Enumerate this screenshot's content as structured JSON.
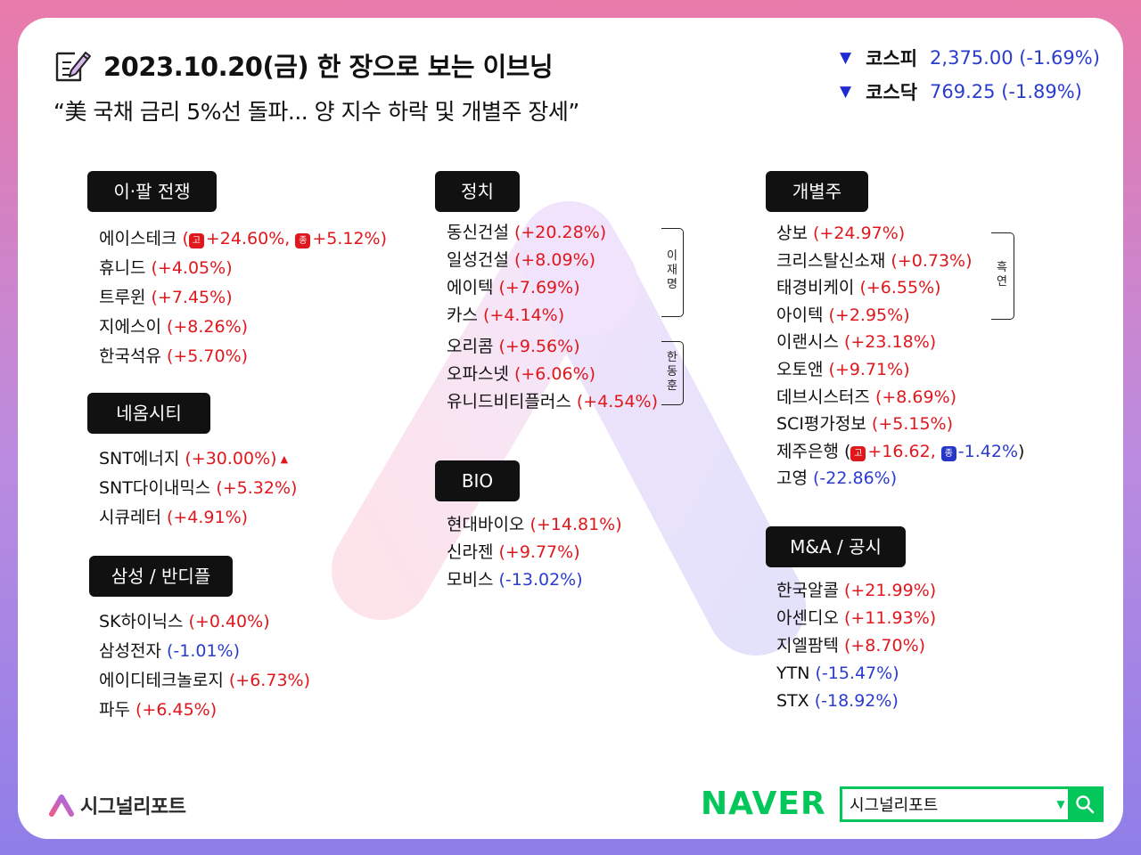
{
  "header": {
    "title": "2023.10.20(금) 한 장으로 보는 이브닝",
    "subtitle": "“美 국채 금리 5%선 돌파... 양 지수 하락 및 개별주 장세”"
  },
  "indices": [
    {
      "name": "코스피",
      "value": "2,375.00 (-1.69%)",
      "direction": "down"
    },
    {
      "name": "코스닥",
      "value": "769.25 (-1.89%)",
      "direction": "down"
    }
  ],
  "icons": {
    "down": "▼",
    "up_small": "▲",
    "dropdown": "▼",
    "memo": "memo-pencil-icon",
    "search": "search-icon"
  },
  "colors": {
    "up": "#e0171c",
    "down": "#2a3ccf",
    "naver": "#03c75a"
  },
  "categories": {
    "war": {
      "label": "이·팔 전쟁",
      "items": [
        {
          "name": "에이스테크",
          "open": "(",
          "b1": "고",
          "c1": "+24.60%,",
          "b2": "종",
          "c2": "+5.12%",
          "close": ")"
        },
        {
          "name": "휴니드",
          "change": "(+4.05%)",
          "dir": "up"
        },
        {
          "name": "트루윈",
          "change": "(+7.45%)",
          "dir": "up"
        },
        {
          "name": "지에스이",
          "change": "(+8.26%)",
          "dir": "up"
        },
        {
          "name": "한국석유",
          "change": "(+5.70%)",
          "dir": "up"
        }
      ]
    },
    "neom": {
      "label": "네옴시티",
      "items": [
        {
          "name": "SNT에너지",
          "change": "(+30.00%)",
          "dir": "up",
          "mark": "▲"
        },
        {
          "name": "SNT다이내믹스",
          "change": "(+5.32%)",
          "dir": "up"
        },
        {
          "name": "시큐레터",
          "change": "(+4.91%)",
          "dir": "up"
        }
      ]
    },
    "samsung": {
      "label": "삼성 / 반디플",
      "items": [
        {
          "name": "SK하이닉스",
          "change": "(+0.40%)",
          "dir": "up"
        },
        {
          "name": "삼성전자",
          "change": "(-1.01%)",
          "dir": "down"
        },
        {
          "name": "에이디테크놀로지",
          "change": "(+6.73%)",
          "dir": "up"
        },
        {
          "name": "파두",
          "change": "(+6.45%)",
          "dir": "up"
        }
      ]
    },
    "politics": {
      "label": "정치",
      "items": [
        {
          "name": "동신건설",
          "change": "(+20.28%)",
          "dir": "up"
        },
        {
          "name": "일성건설",
          "change": "(+8.09%)",
          "dir": "up"
        },
        {
          "name": "에이텍",
          "change": "(+7.69%)",
          "dir": "up"
        },
        {
          "name": "카스",
          "change": "(+4.14%)",
          "dir": "up"
        },
        {
          "name": "오리콤",
          "change": "(+9.56%)",
          "dir": "up"
        },
        {
          "name": "오파스넷",
          "change": "(+6.06%)",
          "dir": "up"
        },
        {
          "name": "유니드비티플러스",
          "change": "(+4.54%)",
          "dir": "up"
        }
      ],
      "group1": "이재명",
      "group2": "한동훈"
    },
    "bio": {
      "label": "BIO",
      "items": [
        {
          "name": "현대바이오",
          "change": "(+14.81%)",
          "dir": "up"
        },
        {
          "name": "신라젠",
          "change": "(+9.77%)",
          "dir": "up"
        },
        {
          "name": "모비스",
          "change": "(-13.02%)",
          "dir": "down"
        }
      ]
    },
    "individual": {
      "label": "개별주",
      "items": [
        {
          "name": "상보",
          "change": "(+24.97%)",
          "dir": "up"
        },
        {
          "name": "크리스탈신소재",
          "change": "(+0.73%)",
          "dir": "up"
        },
        {
          "name": "태경비케이",
          "change": "(+6.55%)",
          "dir": "up"
        },
        {
          "name": "아이텍",
          "change": "(+2.95%)",
          "dir": "up"
        },
        {
          "name": "이랜시스",
          "change": "(+23.18%)",
          "dir": "up"
        },
        {
          "name": "오토앤",
          "change": "(+9.71%)",
          "dir": "up"
        },
        {
          "name": "데브시스터즈",
          "change": "(+8.69%)",
          "dir": "up"
        },
        {
          "name": "SCI평가정보",
          "change": "(+5.15%)",
          "dir": "up"
        },
        {
          "name": "제주은행",
          "open": "(",
          "b1": "고",
          "c1": "+16.62,",
          "b2": "종",
          "c2": "-1.42%",
          "close": ")"
        },
        {
          "name": "고영",
          "change": "(-22.86%)",
          "dir": "down"
        }
      ],
      "group": "흑연"
    },
    "ma": {
      "label": "M&A / 공시",
      "items": [
        {
          "name": "한국알콜",
          "change": "(+21.99%)",
          "dir": "up"
        },
        {
          "name": "아센디오",
          "change": "(+11.93%)",
          "dir": "up"
        },
        {
          "name": "지엘팜텍",
          "change": "(+8.70%)",
          "dir": "up"
        },
        {
          "name": "YTN",
          "change": "(-15.47%)",
          "dir": "down"
        },
        {
          "name": "STX",
          "change": "(-18.92%)",
          "dir": "down"
        }
      ]
    }
  },
  "footer": {
    "brand": "시그널리포트",
    "naver": "NAVER",
    "search_value": "시그널리포트"
  }
}
